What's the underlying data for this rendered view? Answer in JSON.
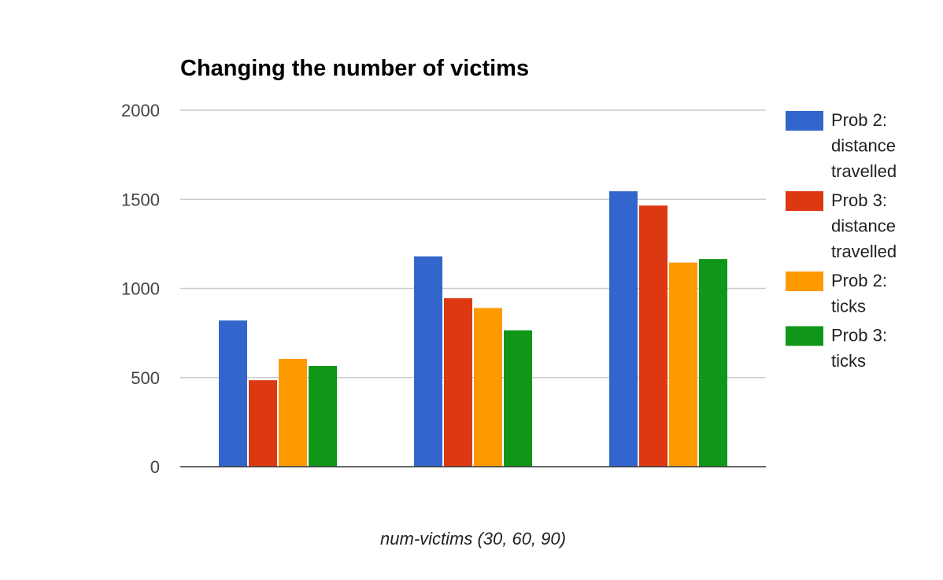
{
  "chart_data": {
    "type": "bar",
    "title": "Changing the number of victims",
    "xlabel": "num-victims (30, 60, 90)",
    "ylabel": "",
    "ylim": [
      0,
      2000
    ],
    "yticks": [
      0,
      500,
      1000,
      1500,
      2000
    ],
    "categories": [
      "",
      "",
      ""
    ],
    "grid": true,
    "legend_position": "right",
    "series": [
      {
        "name": "Prob 2: distance travelled",
        "legend_lines": [
          "Prob 2:",
          "distance",
          "travelled"
        ],
        "color": "#3366cc",
        "values": [
          820,
          1180,
          1545
        ]
      },
      {
        "name": "Prob 3: distance travelled",
        "legend_lines": [
          "Prob 3:",
          "distance",
          "travelled"
        ],
        "color": "#dc3912",
        "values": [
          485,
          945,
          1465
        ]
      },
      {
        "name": "Prob 2: ticks",
        "legend_lines": [
          "Prob 2:",
          "ticks"
        ],
        "color": "#ff9900",
        "values": [
          605,
          890,
          1145
        ]
      },
      {
        "name": "Prob 3: ticks",
        "legend_lines": [
          "Prob 3:",
          "ticks"
        ],
        "color": "#109618",
        "values": [
          565,
          765,
          1165
        ]
      }
    ]
  }
}
